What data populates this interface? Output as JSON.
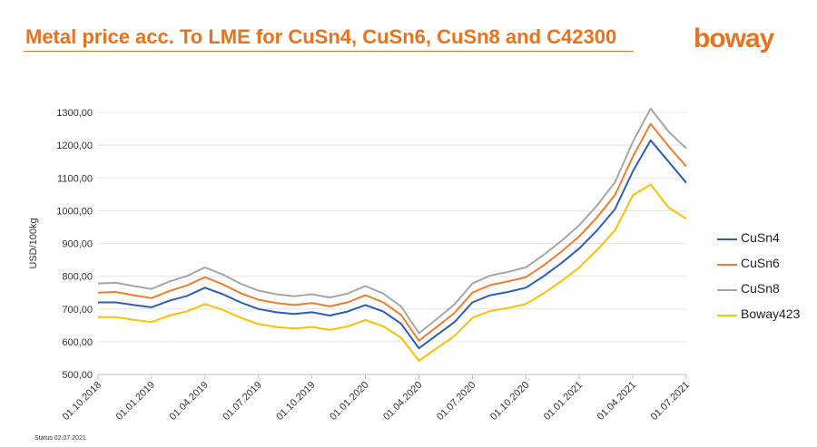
{
  "header": {
    "title": "Metal price acc. To LME for CuSn4, CuSn6, CuSn8 and C42300",
    "logo_text": "boway"
  },
  "footer": {
    "status": "Status 02.07.2021"
  },
  "colors": {
    "accent": "#E8731E",
    "CuSn4": "#2E5CB8",
    "CuSn6": "#EE7D31",
    "CuSn8": "#A6A6A6",
    "Boway423": "#FFC000"
  },
  "chart_data": {
    "type": "line",
    "title": "",
    "xlabel": "",
    "ylabel": "USD/100kg",
    "ylim": [
      500,
      1300
    ],
    "yticks": [
      "500,00",
      "600,00",
      "700,00",
      "800,00",
      "900,00",
      "1000,00",
      "1100,00",
      "1200,00",
      "1300,00"
    ],
    "xticks": [
      "01.10.2018",
      "01.01.2019",
      "01.04.2019",
      "01.07.2019",
      "01.10.2019",
      "01.01.2020",
      "01.04.2020",
      "01.07.2020",
      "01.10.2020",
      "01.01.2021",
      "01.04.2021",
      "01.07.2021"
    ],
    "grid": "horizontal",
    "legend": "right",
    "x": [
      "2018-10",
      "2018-11",
      "2018-12",
      "2019-01",
      "2019-02",
      "2019-03",
      "2019-04",
      "2019-05",
      "2019-06",
      "2019-07",
      "2019-08",
      "2019-09",
      "2019-10",
      "2019-11",
      "2019-12",
      "2020-01",
      "2020-02",
      "2020-03",
      "2020-04",
      "2020-05",
      "2020-06",
      "2020-07",
      "2020-08",
      "2020-09",
      "2020-10",
      "2020-11",
      "2020-12",
      "2021-01",
      "2021-02",
      "2021-03",
      "2021-04",
      "2021-05",
      "2021-06",
      "2021-07"
    ],
    "series": [
      {
        "name": "CuSn4",
        "values": [
          720,
          720,
          712,
          705,
          725,
          740,
          765,
          745,
          720,
          700,
          690,
          685,
          690,
          680,
          692,
          712,
          692,
          655,
          580,
          620,
          660,
          720,
          742,
          752,
          765,
          800,
          840,
          885,
          940,
          1005,
          1120,
          1215,
          1150,
          1085
        ]
      },
      {
        "name": "CuSn6",
        "values": [
          750,
          752,
          742,
          733,
          755,
          772,
          797,
          775,
          748,
          728,
          718,
          712,
          718,
          708,
          720,
          742,
          720,
          682,
          603,
          645,
          688,
          750,
          773,
          784,
          797,
          833,
          875,
          922,
          980,
          1048,
          1165,
          1265,
          1197,
          1135
        ]
      },
      {
        "name": "CuSn8",
        "values": [
          778,
          780,
          770,
          761,
          784,
          801,
          827,
          805,
          777,
          756,
          745,
          739,
          745,
          735,
          747,
          770,
          747,
          708,
          626,
          669,
          714,
          778,
          802,
          813,
          827,
          865,
          908,
          956,
          1016,
          1087,
          1210,
          1312,
          1242,
          1190
        ]
      },
      {
        "name": "Boway423",
        "values": [
          675,
          675,
          667,
          660,
          680,
          693,
          715,
          697,
          673,
          654,
          645,
          640,
          645,
          636,
          647,
          666,
          647,
          612,
          542,
          580,
          618,
          673,
          694,
          703,
          715,
          748,
          785,
          827,
          880,
          940,
          1047,
          1080,
          1010,
          975
        ]
      }
    ]
  }
}
